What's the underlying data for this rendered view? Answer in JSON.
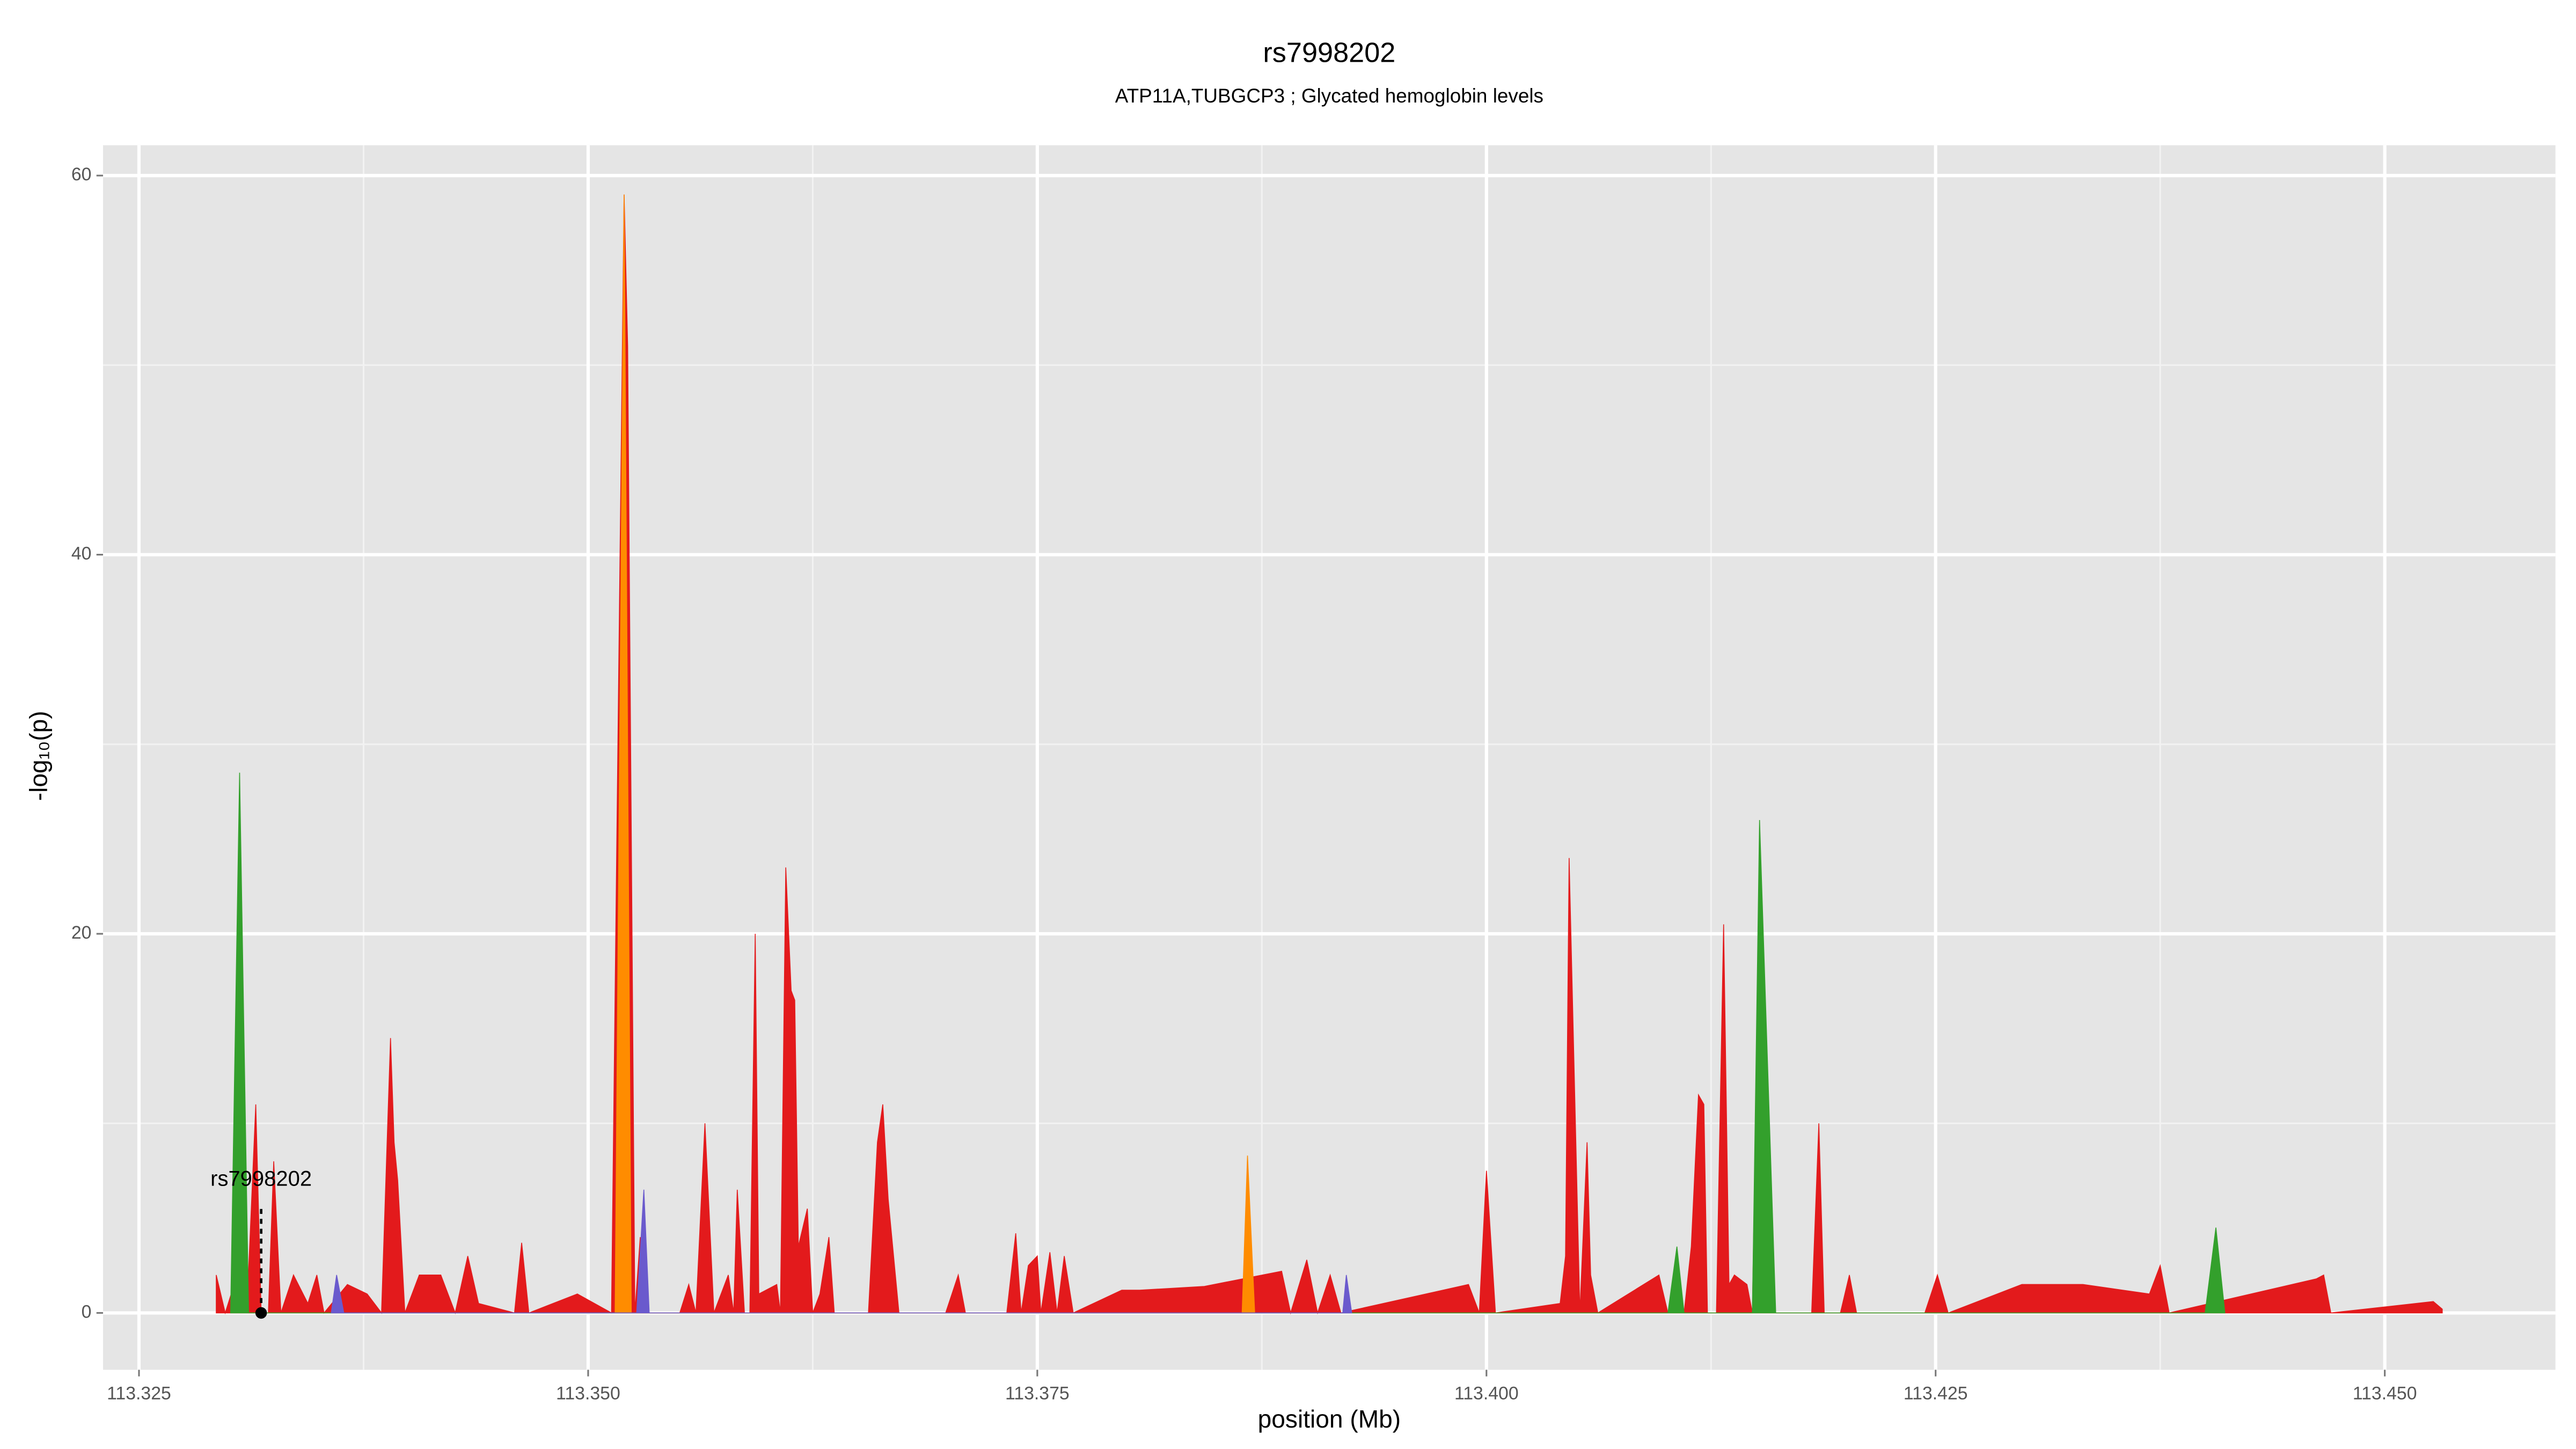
{
  "chart_data": {
    "type": "area",
    "title": "rs7998202",
    "subtitle": "ATP11A,TUBGCP3 ; Glycated hemoglobin levels",
    "x_label": "position (Mb)",
    "y_label": "-log₁₀(p)",
    "xlim": [
      113.323,
      113.4595
    ],
    "ylim": [
      -3,
      61.6
    ],
    "xticks": [
      113.325,
      {
        "value": 113.35,
        "label": "113.350"
      },
      113.375,
      {
        "value": 113.4,
        "label": "113.400"
      },
      113.425,
      {
        "value": 113.45,
        "label": "113.450"
      }
    ],
    "yticks": [
      0,
      20,
      40,
      60
    ],
    "grid": true,
    "background": "#e5e5e5",
    "series": [
      {
        "color": "#e31a1c",
        "x": [
          113.3293,
          113.3298,
          113.3303,
          113.331,
          113.3315,
          113.3318,
          113.3322,
          113.3325,
          113.3329,
          113.3336,
          113.3344,
          113.3349,
          113.3353,
          113.3366,
          113.3377,
          113.3385,
          113.339,
          113.3392,
          113.3394,
          113.3398,
          113.3406,
          113.3412,
          113.3418,
          113.3426,
          113.3433,
          113.3439,
          113.3459,
          113.3463,
          113.3467,
          113.3494,
          113.3513,
          113.352,
          113.3522,
          113.3526,
          113.3529,
          113.3532,
          113.3551,
          113.3556,
          113.356,
          113.3565,
          113.357,
          113.3578,
          113.3581,
          113.3583,
          113.3587,
          113.359,
          113.3593,
          113.3595,
          113.3605,
          113.3607,
          113.361,
          113.3613,
          113.3615,
          113.3617,
          113.3622,
          113.3625,
          113.3629,
          113.3634,
          113.3637,
          113.3656,
          113.3661,
          113.3664,
          113.3667,
          113.3673,
          113.3699,
          113.3706,
          113.371,
          113.3733,
          113.3738,
          113.3741,
          113.3745,
          113.375,
          113.3752,
          113.3757,
          113.3761,
          113.3765,
          113.377,
          113.3797,
          113.3807,
          113.3843,
          113.3886,
          113.3891,
          113.39,
          113.3906,
          113.3913,
          113.3919,
          113.399,
          113.3996,
          113.4,
          113.4005,
          113.4041,
          113.4044,
          113.4046,
          113.4049,
          113.4052,
          113.4056,
          113.4058,
          113.4062,
          113.4096,
          113.4101,
          113.411,
          113.4114,
          113.4118,
          113.4121,
          113.4123,
          113.4128,
          113.4132,
          113.4135,
          113.4138,
          113.4145,
          113.4148,
          113.4152,
          113.4156,
          113.4181,
          113.4185,
          113.4188,
          113.4197,
          113.4202,
          113.4206,
          113.4244,
          113.4251,
          113.4257,
          113.4298,
          113.4332,
          113.4369,
          113.4375,
          113.438,
          113.4462,
          113.4466,
          113.447,
          113.4527,
          113.4532
        ],
        "values": [
          2,
          0,
          1.5,
          0,
          11,
          0,
          0,
          8,
          0,
          2,
          0.5,
          2,
          0,
          1.5,
          1,
          0,
          14.5,
          9,
          7,
          0,
          2,
          2,
          2,
          0,
          3,
          0.5,
          0,
          3.7,
          0,
          1,
          0,
          59,
          51,
          0,
          4,
          0,
          0,
          1.5,
          0,
          10,
          0,
          2,
          0,
          6.5,
          0,
          0,
          20,
          1,
          1.5,
          0,
          23.5,
          17,
          16.5,
          3.5,
          5.5,
          0,
          1,
          4,
          0,
          0,
          9,
          11,
          6,
          0,
          0,
          2,
          0,
          0,
          4.2,
          0,
          2.5,
          3,
          0,
          3.2,
          0,
          3,
          0,
          1.2,
          1.2,
          1.4,
          2.2,
          0,
          2.8,
          0,
          2,
          0,
          1.5,
          0,
          7.5,
          0,
          0.5,
          3,
          24,
          12,
          0,
          9,
          2,
          0,
          2,
          0,
          0,
          3.5,
          11.5,
          11,
          0,
          0,
          20.5,
          1.5,
          2,
          1.5,
          0,
          23,
          0,
          0,
          10,
          0,
          0,
          2,
          0,
          0,
          2,
          0,
          1.5,
          1.5,
          1,
          2.5,
          0,
          1.8,
          2,
          0,
          0.6,
          0.2
        ]
      },
      {
        "color": "#33a02c",
        "x": [
          113.3301,
          113.3306,
          113.3311,
          113.4101,
          113.4106,
          113.411,
          113.4148,
          113.4152,
          113.4161,
          113.44,
          113.4406,
          113.4411
        ],
        "values": [
          0,
          28.5,
          0,
          0,
          3.5,
          0,
          0,
          26,
          0,
          0,
          4.5,
          0
        ]
      },
      {
        "color": "#ff8c00",
        "x": [
          113.3515,
          113.352,
          113.3524,
          113.3864,
          113.3867,
          113.3871
        ],
        "values": [
          0,
          59,
          0,
          0,
          8.3,
          0
        ]
      },
      {
        "color": "#6a5acd",
        "x": [
          113.3357,
          113.336,
          113.3364,
          113.3527,
          113.3531,
          113.3534,
          113.392,
          113.3922,
          113.3925
        ],
        "values": [
          0,
          2,
          0,
          0,
          6.5,
          0,
          0,
          2,
          0
        ]
      }
    ],
    "annotation": {
      "label": "rs7998202",
      "x": 113.3318,
      "y": 0,
      "label_y": 7
    }
  }
}
